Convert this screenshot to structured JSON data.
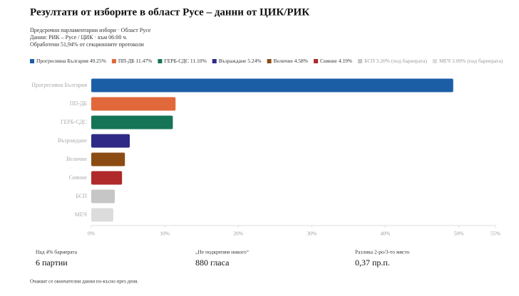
{
  "chart_data": {
    "type": "bar",
    "orientation": "horizontal",
    "title": "Резултати от изборите в област Русе – данни от ЦИК/РИК",
    "subtitle": [
      "Предсрочни парламентарни избори · Област Русе",
      "Данни: РИК – Русе / ЦИК · към 06:00 ч.",
      "Обработени 51,94% от секционните протоколи"
    ],
    "legend": [
      "Прогресивна България 49.25%",
      "ПП-ДБ 11.47%",
      "ГЕРБ-СДС 11.10%",
      "Възраждане 5.24%",
      "Величие 4.58%",
      "Сияние 4.19%",
      "БСП 3.20% (под бариерата)",
      "МЕЧ 3.00% (под бариерата)"
    ],
    "categories": [
      "Прогресивна България",
      "ПП-ДБ",
      "ГЕРБ-СДС",
      "Възраждане",
      "Величие",
      "Сияние",
      "БСП",
      "МЕЧ"
    ],
    "values": [
      49.25,
      11.47,
      11.1,
      5.24,
      4.58,
      4.19,
      3.2,
      3.0
    ],
    "colors": [
      "#1c5ea6",
      "#e0683a",
      "#167457",
      "#2f2a86",
      "#8b4c14",
      "#b0292b",
      "#c6c6c6",
      "#dcdcdc"
    ],
    "xlim": [
      0,
      55
    ],
    "xticks": [
      {
        "value": 0,
        "label": "0%"
      },
      {
        "value": 10,
        "label": "10%"
      },
      {
        "value": 20,
        "label": "20%"
      },
      {
        "value": 30,
        "label": "30%"
      },
      {
        "value": 40,
        "label": "40%"
      },
      {
        "value": 50,
        "label": "50%"
      },
      {
        "value": 55,
        "label": "55%"
      }
    ]
  },
  "stats": [
    {
      "label": "Над 4% бариерата",
      "value": "6 партии"
    },
    {
      "label": "„Не подкрепям никого“",
      "value": "880 гласа"
    },
    {
      "label": "Разлика 2-ро/3-то място",
      "value": "0,37 пр.п."
    }
  ],
  "footnote": "Очакват се окончателни данни по-късно през деня."
}
